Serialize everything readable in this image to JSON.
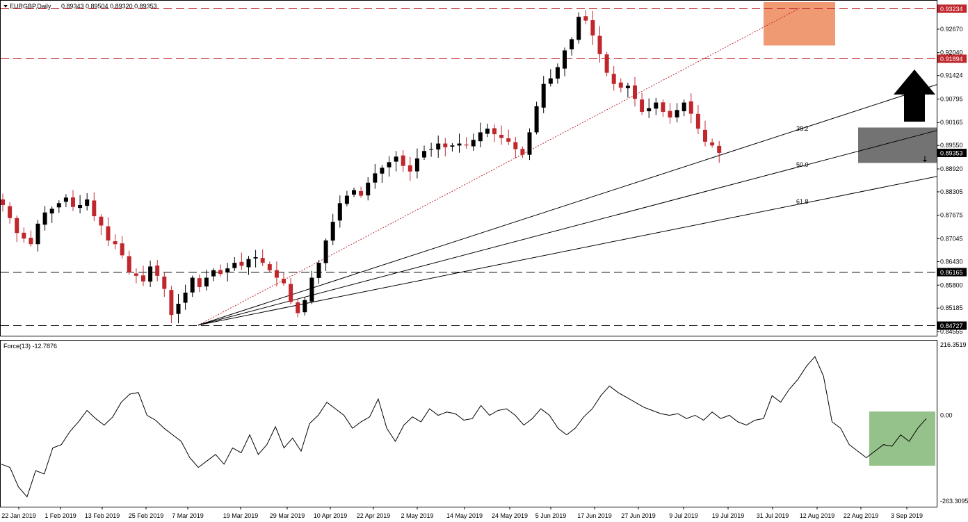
{
  "header": {
    "symbol_label": "EURGBP,Daily",
    "ohlc": "0.89343 0.89504 0.89320 0.89353"
  },
  "indicator": {
    "label": "Force(13) -12.7876"
  },
  "colors": {
    "bull": "#000000",
    "bear": "#c0272d",
    "resistance_zone": "#ef956b",
    "support_zone": "#6b6b6b",
    "indicator_zone": "#8fbf85",
    "level_red": "#c0272d",
    "level_black": "#000000",
    "arrow": "#000000"
  },
  "chart_data": [
    {
      "type": "candlestick",
      "symbol": "EURGBP",
      "timeframe": "Daily",
      "ylim": [
        0.84555,
        0.93415
      ],
      "y_ticks": [
        "0.92670",
        "0.92040",
        "0.91424",
        "0.90795",
        "0.90165",
        "0.89550",
        "0.88920",
        "0.88305",
        "0.87675",
        "0.87045",
        "0.86430",
        "0.85800",
        "0.85185",
        "0.84555"
      ],
      "x_ticks": [
        "22 Jan 2019",
        "1 Feb 2019",
        "13 Feb 2019",
        "25 Feb 2019",
        "7 Mar 2019",
        "19 Mar 2019",
        "29 Mar 2019",
        "10 Apr 2019",
        "22 Apr 2019",
        "2 May 2019",
        "14 May 2019",
        "24 May 2019",
        "5 Jun 2019",
        "17 Jun 2019",
        "27 Jun 2019",
        "9 Jul 2019",
        "19 Jul 2019",
        "31 Jul 2019",
        "12 Aug 2019",
        "22 Aug 2019",
        "3 Sep 2019"
      ],
      "close_path": [
        0.8795,
        0.876,
        0.872,
        0.8705,
        0.869,
        0.8745,
        0.8775,
        0.8785,
        0.88,
        0.8815,
        0.879,
        0.8795,
        0.881,
        0.8765,
        0.874,
        0.87,
        0.869,
        0.866,
        0.8615,
        0.8605,
        0.859,
        0.863,
        0.8605,
        0.857,
        0.85,
        0.853,
        0.856,
        0.86,
        0.8575,
        0.86,
        0.862,
        0.861,
        0.8625,
        0.864,
        0.8632,
        0.865,
        0.8655,
        0.864,
        0.862,
        0.86,
        0.8585,
        0.8535,
        0.8505,
        0.854,
        0.86,
        0.864,
        0.87,
        0.875,
        0.88,
        0.882,
        0.8835,
        0.882,
        0.8855,
        0.888,
        0.8895,
        0.891,
        0.8925,
        0.89,
        0.8885,
        0.892,
        0.894,
        0.8945,
        0.896,
        0.895,
        0.8955,
        0.896,
        0.8955,
        0.897,
        0.899,
        0.9,
        0.8985,
        0.8975,
        0.8965,
        0.8945,
        0.893,
        0.899,
        0.906,
        0.912,
        0.9135,
        0.9165,
        0.921,
        0.924,
        0.93,
        0.929,
        0.925,
        0.92,
        0.915,
        0.912,
        0.911,
        0.9115,
        0.908,
        0.9045,
        0.9055,
        0.907,
        0.9045,
        0.903,
        0.905,
        0.907,
        0.904,
        0.9,
        0.8965,
        0.8955,
        0.8935
      ],
      "levels": [
        {
          "value": "0.93234",
          "style": "red-dashed"
        },
        {
          "value": "0.91894",
          "style": "red-dashed"
        },
        {
          "value": "0.86165",
          "style": "black-dashed"
        },
        {
          "value": "0.84727",
          "style": "black-dashed"
        }
      ],
      "current_price": "0.89353",
      "fibonacci_fan": [
        {
          "label": "38.2"
        },
        {
          "label": "50.0"
        },
        {
          "label": "61.8"
        }
      ],
      "fan_anchor": {
        "date": "7 Mar 2019",
        "price": 0.84727
      },
      "fan_top": {
        "date": "12 Aug 2019",
        "price": 0.93234
      },
      "annotations": [
        {
          "type": "rectangle",
          "role": "resistance-zone",
          "color": "#ef956b"
        },
        {
          "type": "rectangle",
          "role": "support-zone",
          "color": "#6b6b6b"
        },
        {
          "type": "arrow",
          "direction": "up",
          "color": "#000000"
        }
      ]
    },
    {
      "type": "line",
      "title": "Force(13) -12.7876",
      "ylim": [
        -263.3095,
        216.3519
      ],
      "y_ticks": [
        "216.3519",
        "0.00",
        "-263.3095"
      ],
      "values": [
        -150,
        -160,
        -220,
        -250,
        -170,
        -180,
        -100,
        -90,
        -50,
        -20,
        15,
        -10,
        -30,
        -5,
        40,
        65,
        70,
        0,
        -15,
        -40,
        -60,
        -80,
        -130,
        -160,
        -140,
        -120,
        -150,
        -100,
        -115,
        -60,
        -120,
        -90,
        -35,
        -100,
        -70,
        -110,
        -25,
        0,
        40,
        20,
        0,
        -40,
        -20,
        -5,
        50,
        -40,
        -80,
        -30,
        -5,
        -20,
        20,
        0,
        10,
        5,
        -15,
        -10,
        30,
        0,
        15,
        20,
        0,
        -30,
        -10,
        20,
        0,
        -40,
        -60,
        -40,
        -5,
        20,
        60,
        90,
        70,
        55,
        40,
        25,
        15,
        5,
        0,
        5,
        -10,
        0,
        -15,
        10,
        -10,
        0,
        -20,
        -30,
        -15,
        -10,
        60,
        40,
        80,
        110,
        150,
        180,
        120,
        -20,
        -40,
        -90,
        -110,
        -130,
        -110,
        -90,
        -95,
        -60,
        -80,
        -40,
        -10
      ]
    }
  ]
}
